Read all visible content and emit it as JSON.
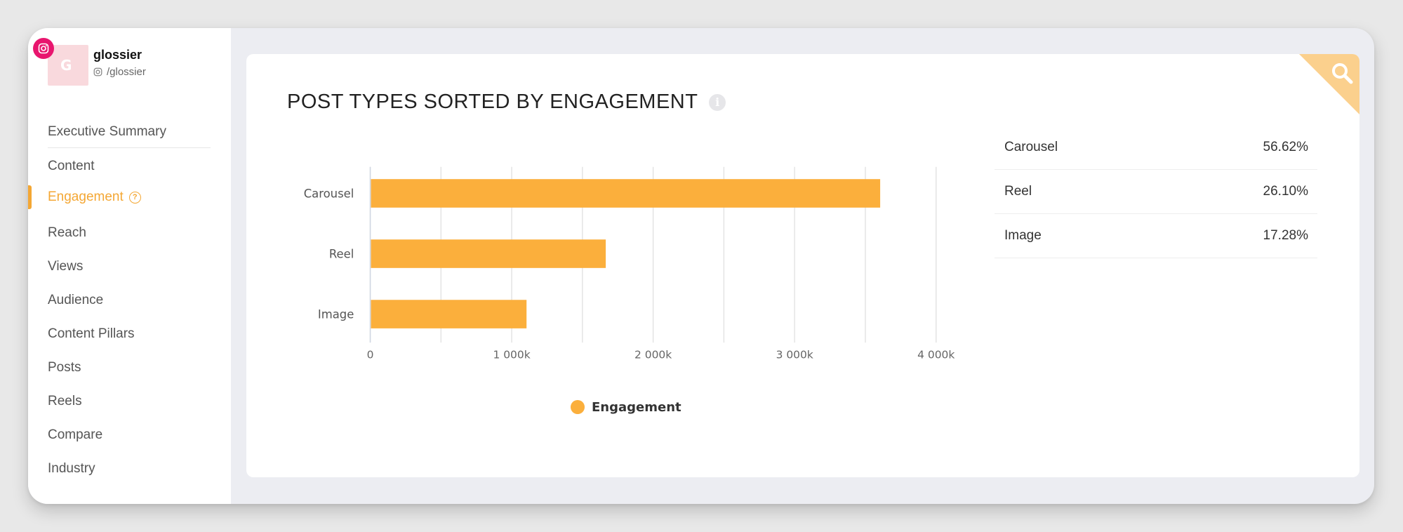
{
  "profile": {
    "name": "glossier",
    "handle": "/glossier",
    "network": "instagram-icon"
  },
  "nav": {
    "items": [
      {
        "label": "Executive Summary",
        "active": false
      },
      {
        "label": "Content",
        "active": false
      },
      {
        "label": "Engagement",
        "active": true
      },
      {
        "label": "Reach",
        "active": false
      },
      {
        "label": "Views",
        "active": false
      },
      {
        "label": "Audience",
        "active": false
      },
      {
        "label": "Content Pillars",
        "active": false
      },
      {
        "label": "Posts",
        "active": false
      },
      {
        "label": "Reels",
        "active": false
      },
      {
        "label": "Compare",
        "active": false
      },
      {
        "label": "Industry",
        "active": false
      }
    ]
  },
  "card": {
    "title": "POST TYPES SORTED BY ENGAGEMENT"
  },
  "colors": {
    "accent": "#f4a734",
    "bar": "#fbaf3c",
    "corner": "#fbd08d",
    "instagram": "#e8166e"
  },
  "chart_data": {
    "type": "bar",
    "orientation": "horizontal",
    "categories": [
      "Carousel",
      "Reel",
      "Image"
    ],
    "series": [
      {
        "name": "Engagement",
        "values": [
          3600000,
          1660000,
          1100000
        ]
      }
    ],
    "xlim": [
      0,
      4000000
    ],
    "x_ticks": [
      "0",
      "1 000k",
      "2 000k",
      "3 000k",
      "4 000k"
    ],
    "grid": true,
    "legend": "bottom"
  },
  "stats": [
    {
      "label": "Carousel",
      "value": "56.62%"
    },
    {
      "label": "Reel",
      "value": "26.10%"
    },
    {
      "label": "Image",
      "value": "17.28%"
    }
  ]
}
